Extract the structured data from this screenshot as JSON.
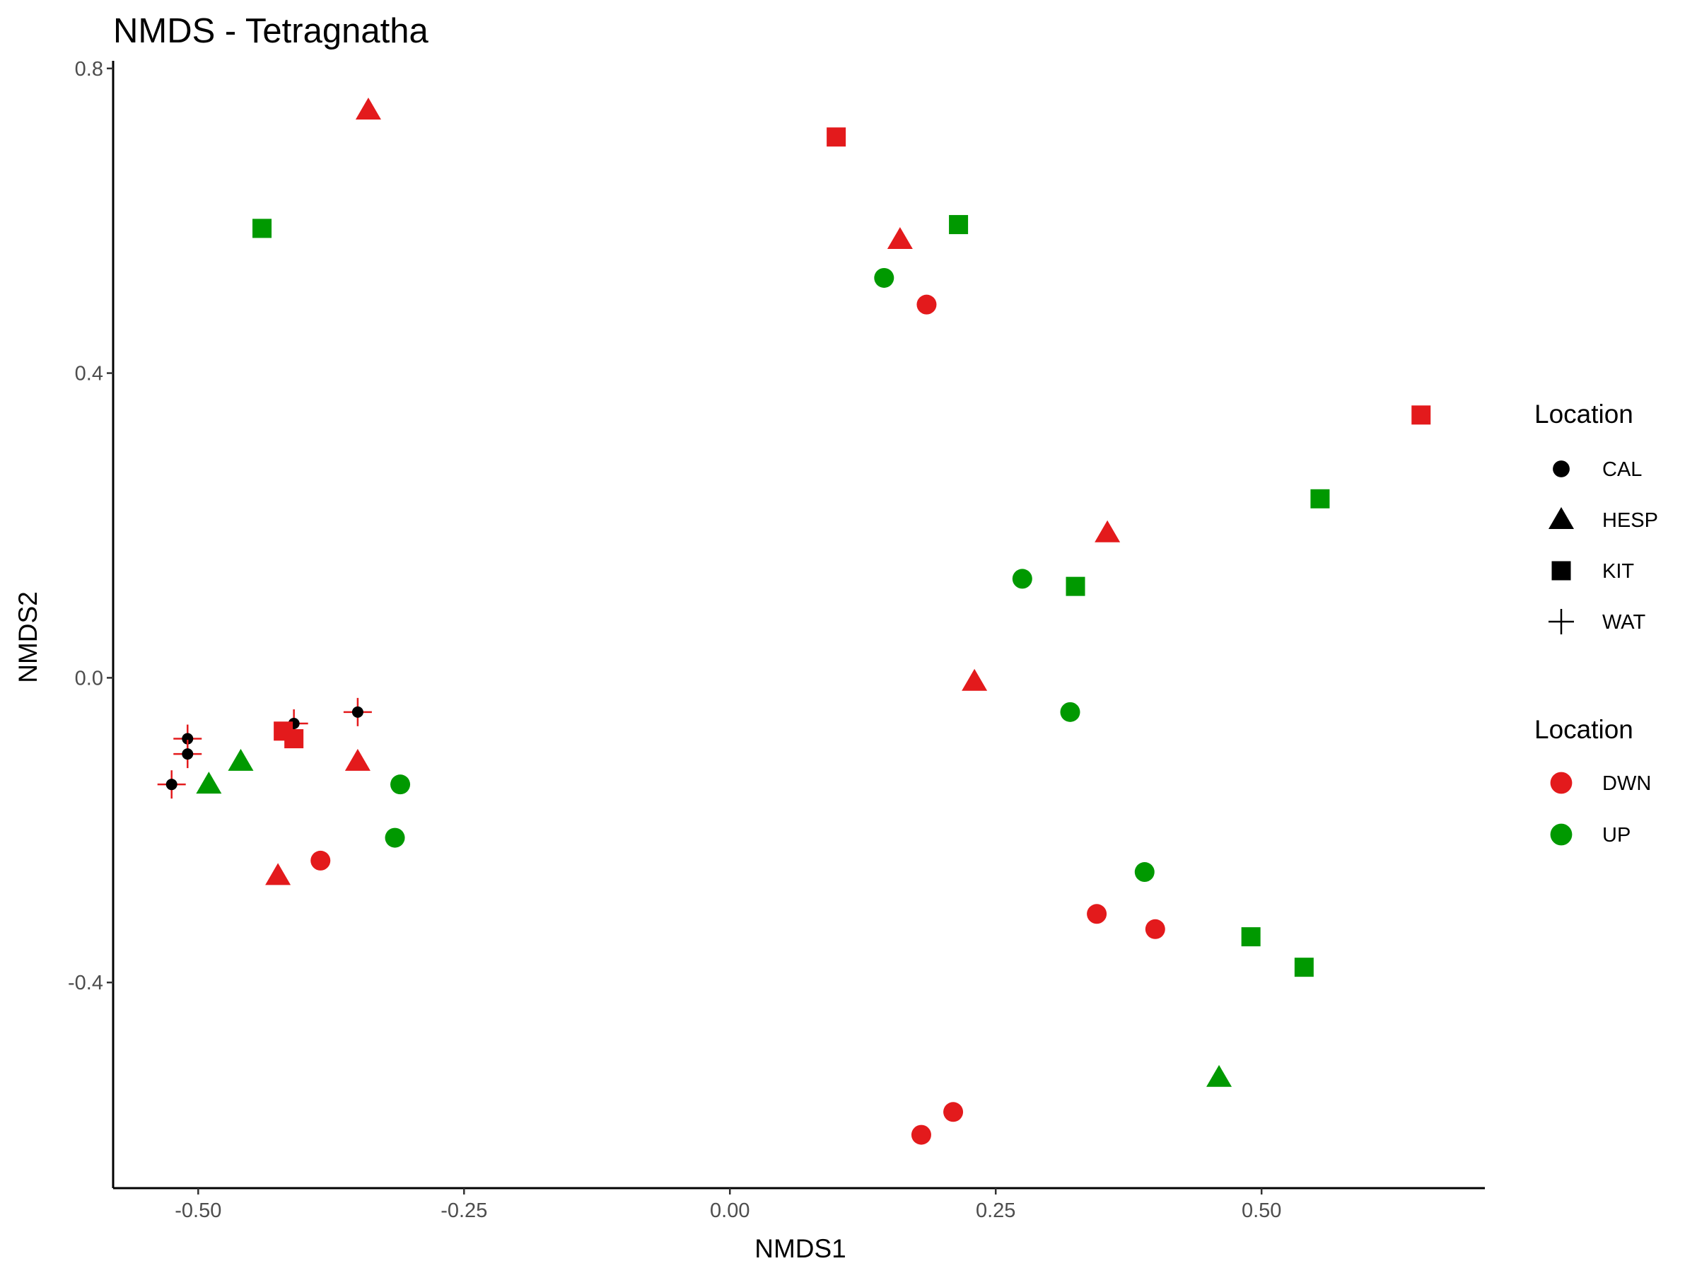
{
  "chart_data": {
    "type": "scatter",
    "title": "NMDS - Tetragnatha",
    "xlabel": "NMDS1",
    "ylabel": "NMDS2",
    "xlim": [
      -0.58,
      0.71
    ],
    "ylim": [
      -0.67,
      0.81
    ],
    "x_ticks": [
      -0.5,
      -0.25,
      0.0,
      0.25,
      0.5
    ],
    "x_tick_labels": [
      "-0.50",
      "-0.25",
      "0.00",
      "0.25",
      "0.50"
    ],
    "y_ticks": [
      -0.4,
      0.0,
      0.4,
      0.8
    ],
    "y_tick_labels": [
      "-0.4",
      "0.0",
      "0.4",
      "0.8"
    ],
    "grid": false,
    "legend_position": "right",
    "legends": [
      {
        "title": "Location",
        "kind": "shape",
        "entries": [
          {
            "label": "CAL",
            "shape": "circle"
          },
          {
            "label": "HESP",
            "shape": "triangle"
          },
          {
            "label": "KIT",
            "shape": "square"
          },
          {
            "label": "WAT",
            "shape": "plus"
          }
        ]
      },
      {
        "title": "Location",
        "kind": "color",
        "entries": [
          {
            "label": "DWN",
            "color": "#e31a1c"
          },
          {
            "label": "UP",
            "color": "#009900"
          }
        ]
      }
    ],
    "points": [
      {
        "x": -0.34,
        "y": 0.745,
        "shape": "triangle",
        "group": "DWN"
      },
      {
        "x": -0.44,
        "y": 0.59,
        "shape": "square",
        "group": "UP"
      },
      {
        "x": 0.1,
        "y": 0.71,
        "shape": "square",
        "group": "DWN"
      },
      {
        "x": 0.16,
        "y": 0.575,
        "shape": "triangle",
        "group": "DWN"
      },
      {
        "x": 0.215,
        "y": 0.595,
        "shape": "square",
        "group": "UP"
      },
      {
        "x": 0.145,
        "y": 0.525,
        "shape": "circle",
        "group": "UP"
      },
      {
        "x": 0.185,
        "y": 0.49,
        "shape": "circle",
        "group": "DWN"
      },
      {
        "x": 0.65,
        "y": 0.345,
        "shape": "square",
        "group": "DWN"
      },
      {
        "x": 0.555,
        "y": 0.235,
        "shape": "square",
        "group": "UP"
      },
      {
        "x": 0.355,
        "y": 0.19,
        "shape": "triangle",
        "group": "DWN"
      },
      {
        "x": 0.275,
        "y": 0.13,
        "shape": "circle",
        "group": "UP"
      },
      {
        "x": 0.325,
        "y": 0.12,
        "shape": "square",
        "group": "UP"
      },
      {
        "x": 0.23,
        "y": -0.005,
        "shape": "triangle",
        "group": "DWN"
      },
      {
        "x": 0.32,
        "y": -0.045,
        "shape": "circle",
        "group": "UP"
      },
      {
        "x": -0.35,
        "y": -0.045,
        "shape": "circle",
        "group": "WAT"
      },
      {
        "x": -0.41,
        "y": -0.06,
        "shape": "circle",
        "group": "WAT"
      },
      {
        "x": -0.51,
        "y": -0.08,
        "shape": "circle",
        "group": "WAT"
      },
      {
        "x": -0.51,
        "y": -0.1,
        "shape": "circle",
        "group": "WAT"
      },
      {
        "x": -0.525,
        "y": -0.14,
        "shape": "circle",
        "group": "WAT"
      },
      {
        "x": -0.42,
        "y": -0.07,
        "shape": "square",
        "group": "DWN"
      },
      {
        "x": -0.41,
        "y": -0.08,
        "shape": "square",
        "group": "DWN"
      },
      {
        "x": -0.46,
        "y": -0.11,
        "shape": "triangle",
        "group": "UP"
      },
      {
        "x": -0.49,
        "y": -0.14,
        "shape": "triangle",
        "group": "UP"
      },
      {
        "x": -0.35,
        "y": -0.11,
        "shape": "triangle",
        "group": "DWN"
      },
      {
        "x": -0.31,
        "y": -0.14,
        "shape": "circle",
        "group": "UP"
      },
      {
        "x": -0.315,
        "y": -0.21,
        "shape": "circle",
        "group": "UP"
      },
      {
        "x": -0.385,
        "y": -0.24,
        "shape": "circle",
        "group": "DWN"
      },
      {
        "x": -0.425,
        "y": -0.26,
        "shape": "triangle",
        "group": "DWN"
      },
      {
        "x": 0.39,
        "y": -0.255,
        "shape": "circle",
        "group": "UP"
      },
      {
        "x": 0.345,
        "y": -0.31,
        "shape": "circle",
        "group": "DWN"
      },
      {
        "x": 0.4,
        "y": -0.33,
        "shape": "circle",
        "group": "DWN"
      },
      {
        "x": 0.49,
        "y": -0.34,
        "shape": "square",
        "group": "UP"
      },
      {
        "x": 0.54,
        "y": -0.38,
        "shape": "square",
        "group": "UP"
      },
      {
        "x": 0.46,
        "y": -0.525,
        "shape": "triangle",
        "group": "UP"
      },
      {
        "x": 0.21,
        "y": -0.57,
        "shape": "circle",
        "group": "DWN"
      },
      {
        "x": 0.18,
        "y": -0.6,
        "shape": "circle",
        "group": "DWN"
      }
    ]
  }
}
